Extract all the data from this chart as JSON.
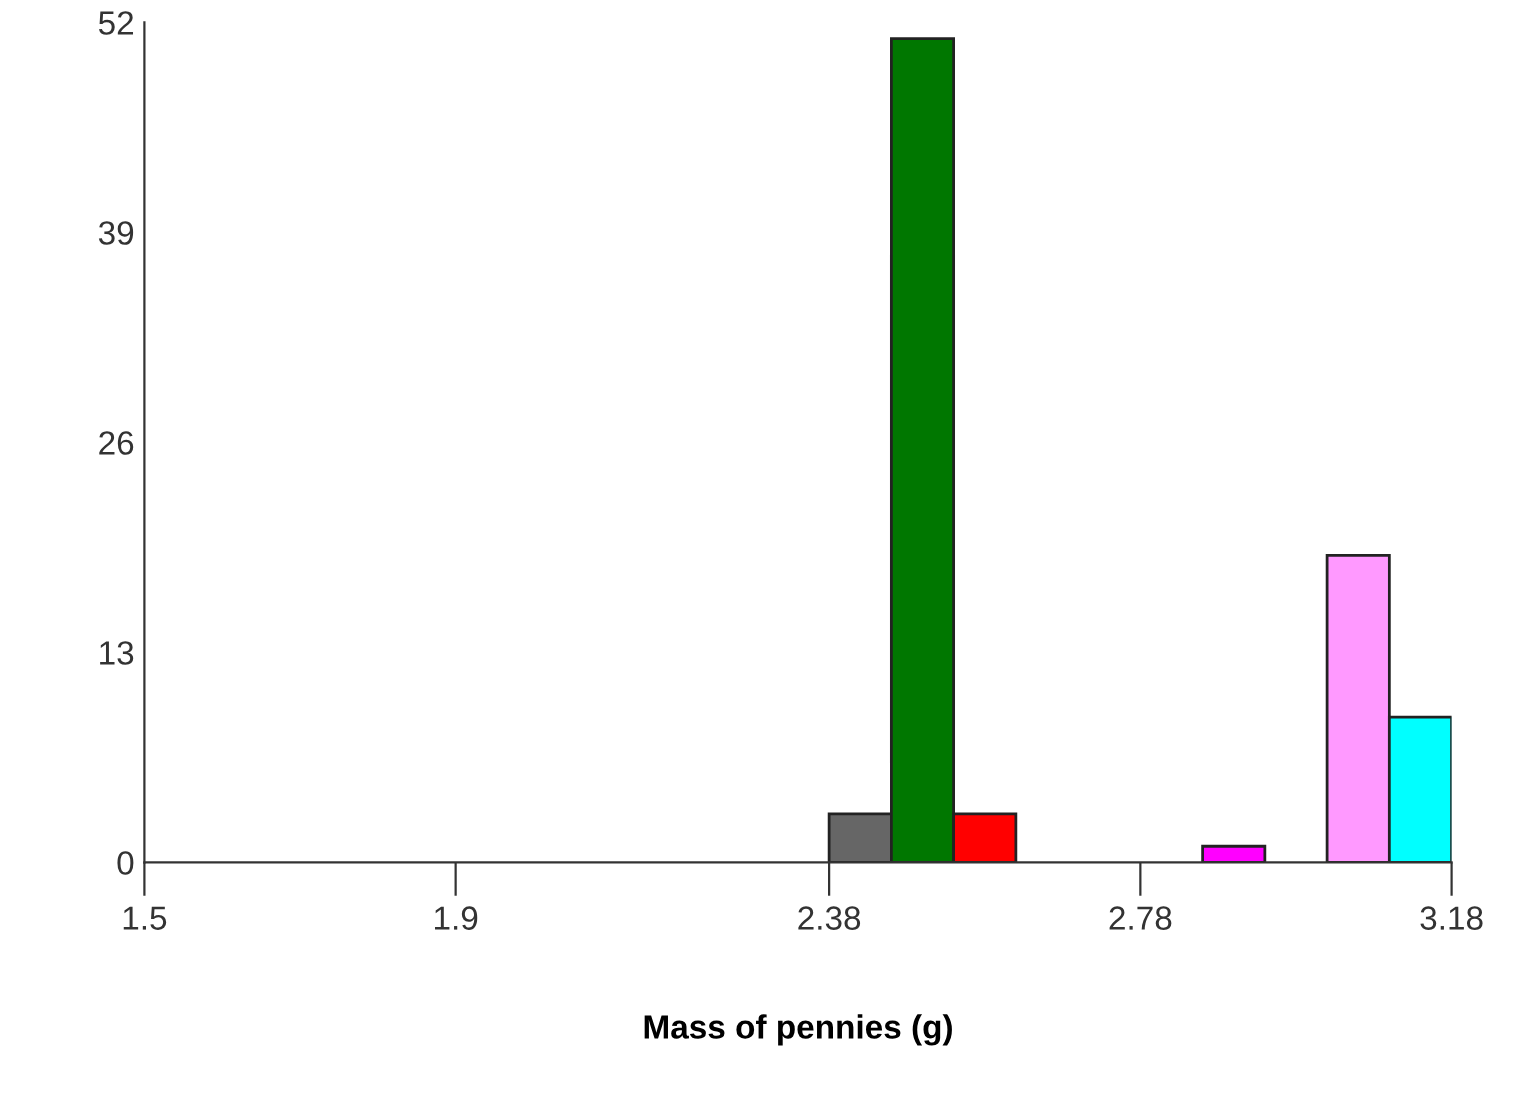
{
  "chart_data": {
    "type": "histogram",
    "xlabel": "Mass of pennies (g)",
    "bins": [
      2.38,
      2.46,
      2.54,
      2.62,
      2.7,
      2.78,
      2.86,
      2.94,
      3.02,
      3.1,
      3.18
    ],
    "values": [
      3,
      51,
      3,
      0,
      0,
      0,
      1,
      0,
      19,
      9
    ],
    "colors": [
      "#666666",
      "#007700",
      "#ff0000",
      null,
      null,
      null,
      "#ff00ff",
      null,
      "#ff99ff",
      "#00ffff"
    ],
    "xlim": [
      1.5,
      3.18
    ],
    "xticks": [
      1.5,
      1.9,
      2.38,
      2.78,
      3.18
    ],
    "ylim": [
      0,
      52
    ],
    "yticks": [
      0,
      13,
      26,
      39,
      52
    ],
    "grid": false
  }
}
